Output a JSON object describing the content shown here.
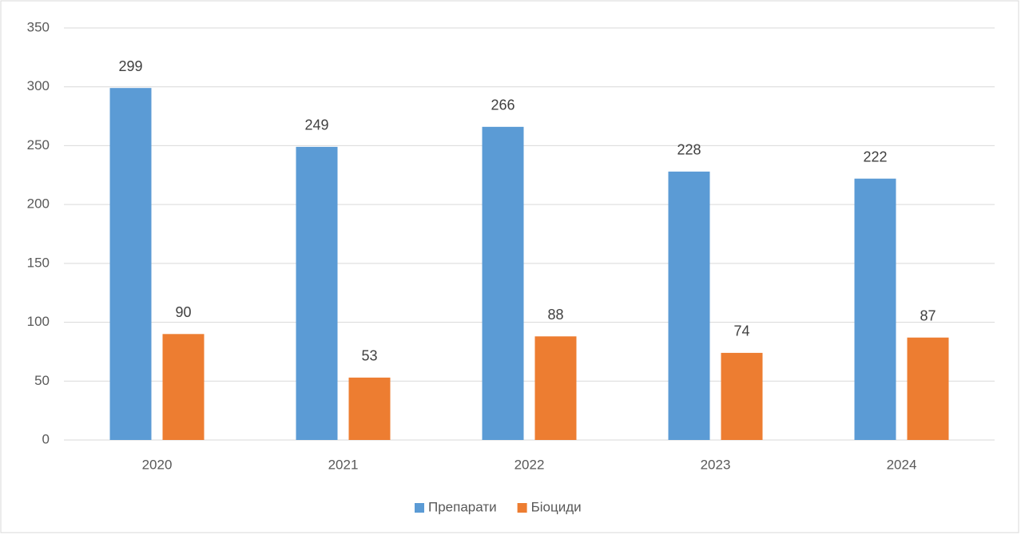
{
  "chart_data": {
    "type": "bar",
    "categories": [
      "2020",
      "2021",
      "2022",
      "2023",
      "2024"
    ],
    "series": [
      {
        "name": "Препарати",
        "color": "#5b9bd5",
        "values": [
          299,
          249,
          266,
          228,
          222
        ]
      },
      {
        "name": "Біоциди",
        "color": "#ed7d31",
        "values": [
          90,
          53,
          88,
          74,
          87
        ]
      }
    ],
    "ylim": [
      0,
      350
    ],
    "yticks": [
      0,
      50,
      100,
      150,
      200,
      250,
      300,
      350
    ],
    "grid": true,
    "legend": "bottom"
  }
}
